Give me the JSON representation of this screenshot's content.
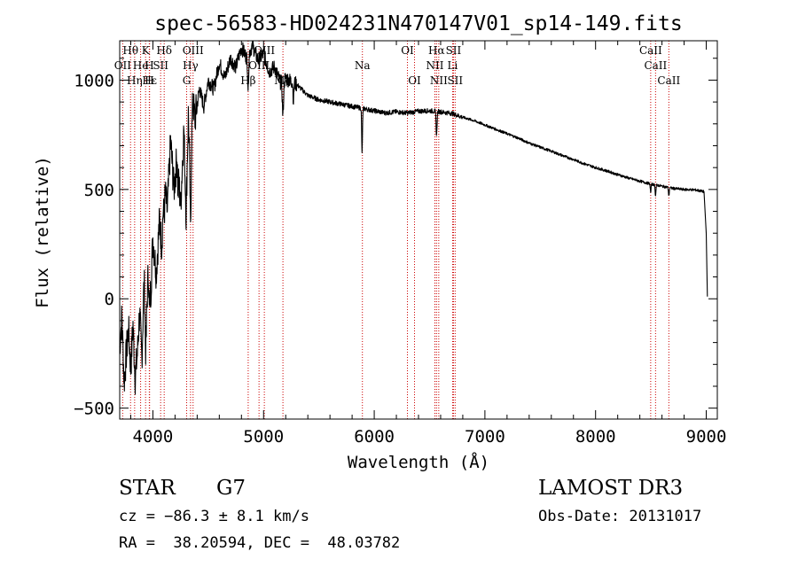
{
  "chart_data": {
    "type": "line",
    "title": "spec-56583-HD024231N470147V01_sp14-149.fits",
    "xlabel": "Wavelength (Å)",
    "ylabel": "Flux (relative)",
    "xlim": [
      3700,
      9100
    ],
    "ylim": [
      -550,
      1180
    ],
    "x_ticks": [
      4000,
      5000,
      6000,
      7000,
      8000,
      9000
    ],
    "x_tick_labels": [
      "4000",
      "5000",
      "6000",
      "7000",
      "8000",
      "9000"
    ],
    "y_ticks": [
      -500,
      0,
      500,
      1000
    ],
    "y_tick_labels": [
      "−500",
      "0",
      "500",
      "1000"
    ],
    "line_color": "#000000",
    "marker_color": "#cc0000",
    "spectrum_anchors": [
      [
        3700,
        -220
      ],
      [
        3720,
        -80
      ],
      [
        3740,
        -380
      ],
      [
        3760,
        -250
      ],
      [
        3780,
        -140
      ],
      [
        3800,
        -320
      ],
      [
        3820,
        -120
      ],
      [
        3840,
        -360
      ],
      [
        3860,
        -250
      ],
      [
        3880,
        -60
      ],
      [
        3900,
        -280
      ],
      [
        3920,
        80
      ],
      [
        3940,
        -100
      ],
      [
        3960,
        150
      ],
      [
        3980,
        20
      ],
      [
        4000,
        280
      ],
      [
        4030,
        120
      ],
      [
        4060,
        360
      ],
      [
        4080,
        240
      ],
      [
        4100,
        530
      ],
      [
        4130,
        400
      ],
      [
        4160,
        720
      ],
      [
        4190,
        500
      ],
      [
        4220,
        660
      ],
      [
        4250,
        420
      ],
      [
        4280,
        780
      ],
      [
        4300,
        380
      ],
      [
        4320,
        840
      ],
      [
        4340,
        520
      ],
      [
        4360,
        910
      ],
      [
        4380,
        820
      ],
      [
        4420,
        960
      ],
      [
        4460,
        880
      ],
      [
        4500,
        1000
      ],
      [
        4550,
        960
      ],
      [
        4600,
        1080
      ],
      [
        4650,
        1010
      ],
      [
        4700,
        1100
      ],
      [
        4750,
        1060
      ],
      [
        4800,
        1150
      ],
      [
        4850,
        1100
      ],
      [
        4900,
        1160
      ],
      [
        4950,
        1090
      ],
      [
        5000,
        1120
      ],
      [
        5050,
        1040
      ],
      [
        5100,
        1060
      ],
      [
        5150,
        990
      ],
      [
        5200,
        1010
      ],
      [
        5300,
        980
      ],
      [
        5400,
        930
      ],
      [
        5500,
        910
      ],
      [
        5600,
        900
      ],
      [
        5700,
        890
      ],
      [
        5800,
        880
      ],
      [
        5900,
        870
      ],
      [
        6000,
        860
      ],
      [
        6100,
        850
      ],
      [
        6200,
        855
      ],
      [
        6300,
        850
      ],
      [
        6400,
        858
      ],
      [
        6500,
        860
      ],
      [
        6600,
        855
      ],
      [
        6700,
        848
      ],
      [
        6800,
        830
      ],
      [
        6900,
        815
      ],
      [
        7000,
        795
      ],
      [
        7100,
        775
      ],
      [
        7200,
        755
      ],
      [
        7300,
        735
      ],
      [
        7400,
        712
      ],
      [
        7500,
        693
      ],
      [
        7600,
        675
      ],
      [
        7700,
        655
      ],
      [
        7800,
        637
      ],
      [
        7900,
        617
      ],
      [
        8000,
        600
      ],
      [
        8100,
        585
      ],
      [
        8200,
        568
      ],
      [
        8300,
        552
      ],
      [
        8400,
        538
      ],
      [
        8500,
        525
      ],
      [
        8600,
        515
      ],
      [
        8700,
        505
      ],
      [
        8800,
        500
      ],
      [
        8900,
        498
      ],
      [
        8980,
        490
      ]
    ],
    "absorption_dips": [
      {
        "x": 3934,
        "depth": 180,
        "width": 6
      },
      {
        "x": 3968,
        "depth": 160,
        "width": 6
      },
      {
        "x": 4101,
        "depth": 150,
        "width": 6
      },
      {
        "x": 4227,
        "depth": 120,
        "width": 5
      },
      {
        "x": 4340,
        "depth": 220,
        "width": 6
      },
      {
        "x": 4861,
        "depth": 150,
        "width": 6
      },
      {
        "x": 5175,
        "depth": 160,
        "width": 8
      },
      {
        "x": 5270,
        "depth": 80,
        "width": 5
      },
      {
        "x": 5890,
        "depth": 200,
        "width": 5
      },
      {
        "x": 6563,
        "depth": 110,
        "width": 6
      },
      {
        "x": 8498,
        "depth": 40,
        "width": 5
      },
      {
        "x": 8542,
        "depth": 50,
        "width": 5
      },
      {
        "x": 8662,
        "depth": 40,
        "width": 5
      }
    ],
    "tail_drop": [
      [
        9000,
        300
      ],
      [
        9010,
        10
      ]
    ],
    "lines": [
      {
        "label": "Hθ",
        "x": 3798,
        "row": 0
      },
      {
        "label": "K",
        "x": 3934,
        "row": 0
      },
      {
        "label": "Hδ",
        "x": 4102,
        "row": 0
      },
      {
        "label": "OIII",
        "x": 4363,
        "row": 0
      },
      {
        "label": "OIII",
        "x": 5007,
        "row": 0
      },
      {
        "label": "OI",
        "x": 6300,
        "row": 0
      },
      {
        "label": "Hα",
        "x": 6563,
        "row": 0
      },
      {
        "label": "SII",
        "x": 6716,
        "row": 0
      },
      {
        "label": "CaII",
        "x": 8498,
        "row": 0
      },
      {
        "label": "OII",
        "x": 3727,
        "row": 1
      },
      {
        "label": "He",
        "x": 3889,
        "row": 1
      },
      {
        "label": "H",
        "x": 3968,
        "row": 1
      },
      {
        "label": "SII",
        "x": 4070,
        "row": 1
      },
      {
        "label": "Hγ",
        "x": 4340,
        "row": 1
      },
      {
        "label": "OIII",
        "x": 4959,
        "row": 1
      },
      {
        "label": "Na",
        "x": 5893,
        "row": 1
      },
      {
        "label": "NII",
        "x": 6548,
        "row": 1
      },
      {
        "label": "Li",
        "x": 6708,
        "row": 1
      },
      {
        "label": "CaII",
        "x": 8542,
        "row": 1
      },
      {
        "label": "Hε",
        "x": 3970,
        "row": 2
      },
      {
        "label": "Hη",
        "x": 3835,
        "row": 2
      },
      {
        "label": "H",
        "x": 3968,
        "row": 2
      },
      {
        "label": "G",
        "x": 4305,
        "row": 2
      },
      {
        "label": "Hβ",
        "x": 4861,
        "row": 2
      },
      {
        "label": "Mg",
        "x": 5175,
        "row": 2
      },
      {
        "label": "OI",
        "x": 6364,
        "row": 2
      },
      {
        "label": "NII",
        "x": 6583,
        "row": 2
      },
      {
        "label": "SII",
        "x": 6731,
        "row": 2
      },
      {
        "label": "CaII",
        "x": 8662,
        "row": 2
      }
    ]
  },
  "info": {
    "object_class": "STAR",
    "subclass": "G7",
    "survey": "LAMOST DR3",
    "redshift": "cz = −86.3 ± 8.1 km/s",
    "obs_date": "Obs-Date: 20131017",
    "coords": "RA =  38.20594, DEC =  48.03782"
  }
}
